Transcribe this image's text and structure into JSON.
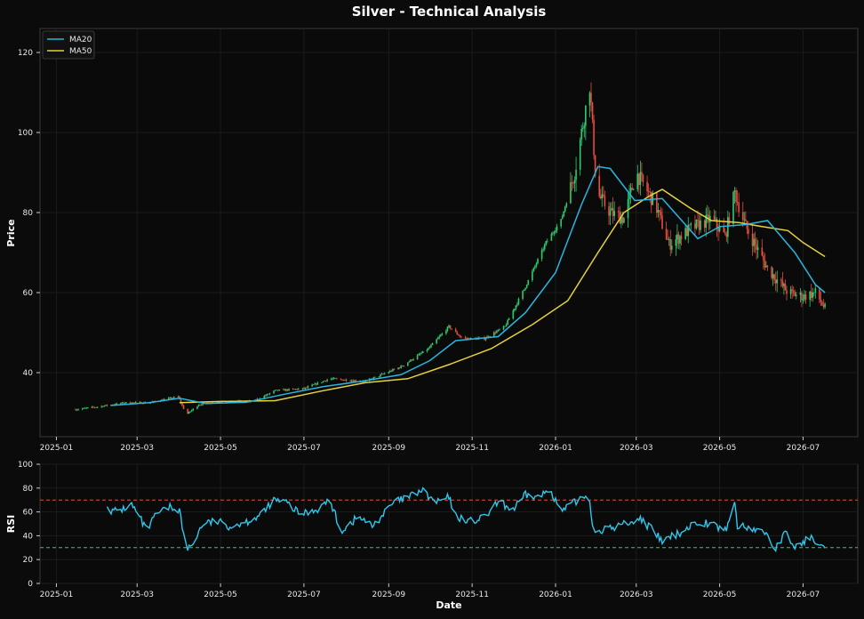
{
  "title": "Silver - Technical Analysis",
  "colors": {
    "background": "#0b0b0b",
    "axes_bg": "#0a0a0a",
    "up": "#2ecc71",
    "down": "#e74c3c",
    "ma20": "#29b6e0",
    "ma50": "#e6d23a",
    "rsi": "#2ec8ee",
    "overbought": "#e74c3c",
    "oversold": "#2ecc71",
    "text": "#e8e8e8"
  },
  "chart_data": [
    {
      "type": "candlestick",
      "ylabel": "Price",
      "xlim": [
        "2024-12-20",
        "2026-08-10"
      ],
      "ylim": [
        24,
        126
      ],
      "yticks": [
        40,
        60,
        80,
        100,
        120
      ],
      "xticks": [
        "2025-01",
        "2025-03",
        "2025-05",
        "2025-07",
        "2025-09",
        "2025-11",
        "2026-01",
        "2026-03",
        "2026-05",
        "2026-07"
      ],
      "grid": true,
      "legend": {
        "placement": "top-left",
        "entries": [
          "MA20",
          "MA50"
        ]
      },
      "close_anchors": [
        [
          "2025-01-15",
          30.8
        ],
        [
          "2025-02-01",
          31.5
        ],
        [
          "2025-02-20",
          32.5
        ],
        [
          "2025-03-10",
          32.5
        ],
        [
          "2025-03-31",
          34.0
        ],
        [
          "2025-04-06",
          29.5
        ],
        [
          "2025-04-15",
          32.0
        ],
        [
          "2025-05-01",
          32.8
        ],
        [
          "2025-05-25",
          32.8
        ],
        [
          "2025-06-10",
          35.5
        ],
        [
          "2025-07-01",
          36.0
        ],
        [
          "2025-07-20",
          38.5
        ],
        [
          "2025-08-15",
          37.8
        ],
        [
          "2025-09-10",
          41.5
        ],
        [
          "2025-09-30",
          46.0
        ],
        [
          "2025-10-15",
          51.5
        ],
        [
          "2025-10-25",
          48.5
        ],
        [
          "2025-11-10",
          48.5
        ],
        [
          "2025-11-25",
          51.5
        ],
        [
          "2025-12-10",
          61.5
        ],
        [
          "2025-12-25",
          72.5
        ],
        [
          "2026-01-05",
          78.0
        ],
        [
          "2026-01-15",
          90.0
        ],
        [
          "2026-01-26",
          112.0
        ],
        [
          "2026-01-31",
          85.0
        ],
        [
          "2026-02-10",
          80.0
        ],
        [
          "2026-02-20",
          78.5
        ],
        [
          "2026-03-01",
          90.0
        ],
        [
          "2026-03-15",
          82.0
        ],
        [
          "2026-03-25",
          72.0
        ],
        [
          "2026-04-10",
          76.0
        ],
        [
          "2026-04-25",
          78.5
        ],
        [
          "2026-05-05",
          74.0
        ],
        [
          "2026-05-12",
          85.0
        ],
        [
          "2026-05-20",
          76.5
        ],
        [
          "2026-06-05",
          66.0
        ],
        [
          "2026-06-20",
          60.0
        ],
        [
          "2026-07-01",
          59.0
        ],
        [
          "2026-07-10",
          60.0
        ],
        [
          "2026-07-17",
          56.0
        ]
      ],
      "ma20_points": [
        [
          "2025-02-10",
          31.8
        ],
        [
          "2025-03-10",
          32.5
        ],
        [
          "2025-04-01",
          33.6
        ],
        [
          "2025-04-20",
          32.3
        ],
        [
          "2025-05-20",
          32.6
        ],
        [
          "2025-06-15",
          34.5
        ],
        [
          "2025-07-15",
          36.5
        ],
        [
          "2025-08-15",
          38.0
        ],
        [
          "2025-09-10",
          39.5
        ],
        [
          "2025-10-01",
          43.0
        ],
        [
          "2025-10-20",
          48.0
        ],
        [
          "2025-11-20",
          49.0
        ],
        [
          "2025-12-10",
          55.0
        ],
        [
          "2026-01-01",
          65.0
        ],
        [
          "2026-01-20",
          82.0
        ],
        [
          "2026-02-01",
          91.5
        ],
        [
          "2026-02-10",
          91.0
        ],
        [
          "2026-02-28",
          83.0
        ],
        [
          "2026-03-20",
          83.5
        ],
        [
          "2026-04-15",
          73.5
        ],
        [
          "2026-05-01",
          76.5
        ],
        [
          "2026-05-20",
          77.0
        ],
        [
          "2026-06-05",
          78.0
        ],
        [
          "2026-06-25",
          70.0
        ],
        [
          "2026-07-10",
          62.0
        ],
        [
          "2026-07-17",
          60.0
        ]
      ],
      "ma50_points": [
        [
          "2025-04-01",
          32.5
        ],
        [
          "2025-05-01",
          32.8
        ],
        [
          "2025-06-10",
          33.0
        ],
        [
          "2025-07-15",
          35.5
        ],
        [
          "2025-08-15",
          37.5
        ],
        [
          "2025-09-15",
          38.5
        ],
        [
          "2025-10-15",
          42.0
        ],
        [
          "2025-11-15",
          46.0
        ],
        [
          "2025-12-15",
          52.0
        ],
        [
          "2026-01-10",
          58.0
        ],
        [
          "2026-02-01",
          70.0
        ],
        [
          "2026-02-20",
          80.0
        ],
        [
          "2026-03-10",
          84.0
        ],
        [
          "2026-03-20",
          85.8
        ],
        [
          "2026-04-10",
          81.0
        ],
        [
          "2026-04-25",
          78.0
        ],
        [
          "2026-05-15",
          77.5
        ],
        [
          "2026-06-01",
          76.5
        ],
        [
          "2026-06-20",
          75.5
        ],
        [
          "2026-07-01",
          72.5
        ],
        [
          "2026-07-17",
          69.0
        ]
      ]
    },
    {
      "type": "line",
      "ylabel": "RSI",
      "xlabel": "Date",
      "xlim": [
        "2024-12-20",
        "2026-08-10"
      ],
      "ylim": [
        0,
        100
      ],
      "yticks": [
        0,
        20,
        40,
        60,
        80,
        100
      ],
      "xticks": [
        "2025-01",
        "2025-03",
        "2025-05",
        "2025-07",
        "2025-09",
        "2025-11",
        "2026-01",
        "2026-03",
        "2026-05",
        "2026-07"
      ],
      "overbought": 70,
      "oversold": 30,
      "grid": true,
      "rsi_points": [
        [
          "2025-02-07",
          68
        ],
        [
          "2025-02-10",
          60
        ],
        [
          "2025-02-18",
          62
        ],
        [
          "2025-02-25",
          66
        ],
        [
          "2025-03-03",
          55
        ],
        [
          "2025-03-08",
          44
        ],
        [
          "2025-03-15",
          58
        ],
        [
          "2025-03-25",
          64
        ],
        [
          "2025-04-01",
          62
        ],
        [
          "2025-04-04",
          40
        ],
        [
          "2025-04-06",
          28
        ],
        [
          "2025-04-10",
          32
        ],
        [
          "2025-04-18",
          50
        ],
        [
          "2025-04-28",
          52
        ],
        [
          "2025-05-08",
          48
        ],
        [
          "2025-05-20",
          52
        ],
        [
          "2025-06-01",
          58
        ],
        [
          "2025-06-08",
          70
        ],
        [
          "2025-06-18",
          68
        ],
        [
          "2025-06-28",
          58
        ],
        [
          "2025-07-10",
          62
        ],
        [
          "2025-07-20",
          70
        ],
        [
          "2025-07-28",
          44
        ],
        [
          "2025-08-10",
          56
        ],
        [
          "2025-08-20",
          48
        ],
        [
          "2025-08-28",
          58
        ],
        [
          "2025-09-05",
          68
        ],
        [
          "2025-09-15",
          72
        ],
        [
          "2025-09-25",
          78
        ],
        [
          "2025-10-05",
          68
        ],
        [
          "2025-10-15",
          72
        ],
        [
          "2025-10-20",
          56
        ],
        [
          "2025-11-01",
          52
        ],
        [
          "2025-11-10",
          55
        ],
        [
          "2025-11-20",
          68
        ],
        [
          "2025-12-01",
          62
        ],
        [
          "2025-12-10",
          74
        ],
        [
          "2025-12-20",
          72
        ],
        [
          "2025-12-28",
          80
        ],
        [
          "2026-01-05",
          60
        ],
        [
          "2026-01-15",
          68
        ],
        [
          "2026-01-25",
          76
        ],
        [
          "2026-01-29",
          44
        ],
        [
          "2026-02-10",
          46
        ],
        [
          "2026-02-25",
          52
        ],
        [
          "2026-03-05",
          54
        ],
        [
          "2026-03-15",
          42
        ],
        [
          "2026-03-20",
          35
        ],
        [
          "2026-04-01",
          42
        ],
        [
          "2026-04-15",
          52
        ],
        [
          "2026-04-25",
          50
        ],
        [
          "2026-05-05",
          44
        ],
        [
          "2026-05-12",
          67
        ],
        [
          "2026-05-14",
          48
        ],
        [
          "2026-05-25",
          46
        ],
        [
          "2026-06-05",
          42
        ],
        [
          "2026-06-10",
          28
        ],
        [
          "2026-06-18",
          42
        ],
        [
          "2026-06-25",
          30
        ],
        [
          "2026-07-05",
          38
        ],
        [
          "2026-07-12",
          36
        ],
        [
          "2026-07-17",
          33
        ]
      ]
    }
  ]
}
